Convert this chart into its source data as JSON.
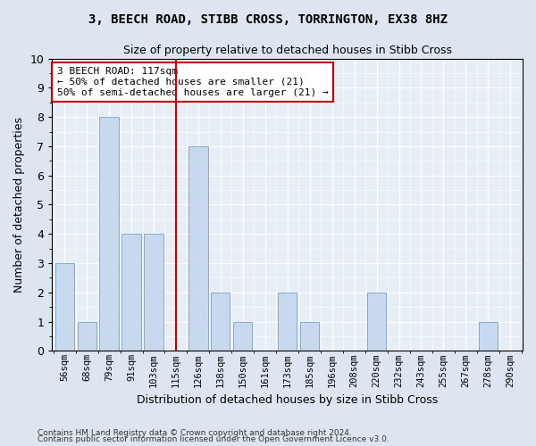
{
  "title": "3, BEECH ROAD, STIBB CROSS, TORRINGTON, EX38 8HZ",
  "subtitle": "Size of property relative to detached houses in Stibb Cross",
  "xlabel": "Distribution of detached houses by size in Stibb Cross",
  "ylabel": "Number of detached properties",
  "bar_labels": [
    "56sqm",
    "68sqm",
    "79sqm",
    "91sqm",
    "103sqm",
    "115sqm",
    "126sqm",
    "138sqm",
    "150sqm",
    "161sqm",
    "173sqm",
    "185sqm",
    "196sqm",
    "208sqm",
    "220sqm",
    "232sqm",
    "243sqm",
    "255sqm",
    "267sqm",
    "278sqm",
    "290sqm"
  ],
  "bar_values": [
    3,
    1,
    8,
    4,
    4,
    0,
    7,
    2,
    1,
    0,
    2,
    1,
    0,
    0,
    2,
    0,
    0,
    0,
    0,
    1,
    0
  ],
  "bar_color": "#c8d8ee",
  "bar_edge_color": "#7aa0c8",
  "vline_x_index": 5,
  "vline_color": "#cc0000",
  "annotation_text": "3 BEECH ROAD: 117sqm\n← 50% of detached houses are smaller (21)\n50% of semi-detached houses are larger (21) →",
  "annotation_box_color": "#ffffff",
  "annotation_box_edge": "#cc0000",
  "ylim": [
    0,
    10
  ],
  "yticks": [
    0,
    1,
    2,
    3,
    4,
    5,
    6,
    7,
    8,
    9,
    10
  ],
  "footer1": "Contains HM Land Registry data © Crown copyright and database right 2024.",
  "footer2": "Contains public sector information licensed under the Open Government Licence v3.0.",
  "bg_color": "#dde6f0",
  "plot_bg_color": "#e8eef6"
}
